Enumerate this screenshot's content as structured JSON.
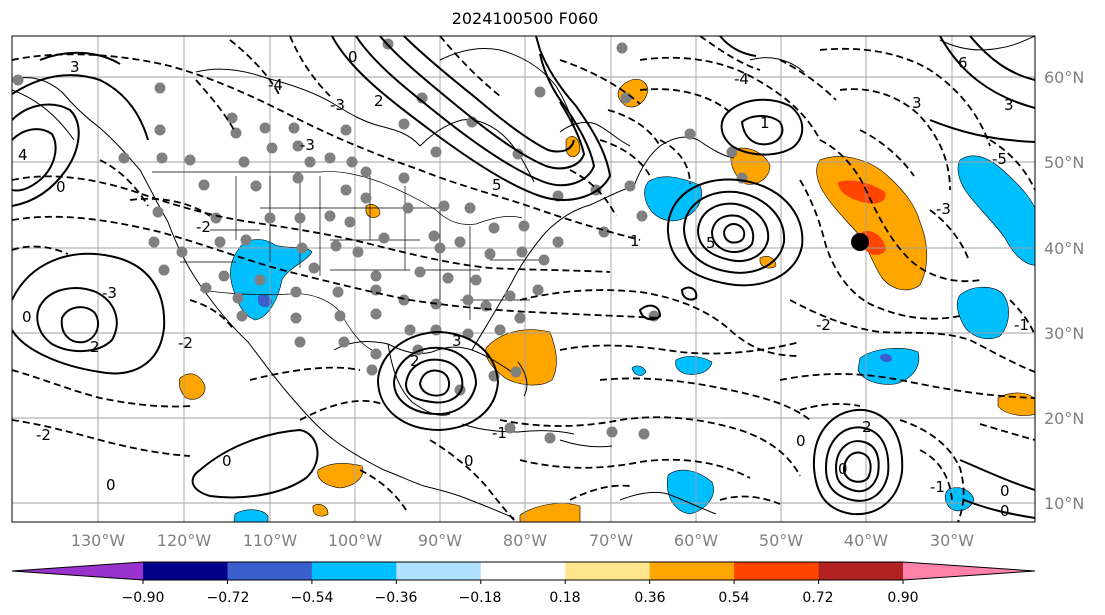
{
  "title": "2024100500 F060",
  "longitude_labels": [
    "130°W",
    "120°W",
    "110°W",
    "100°W",
    "90°W",
    "80°W",
    "70°W",
    "60°W",
    "50°W",
    "40°W",
    "30°W"
  ],
  "latitude_labels": [
    "60°N",
    "50°N",
    "40°N",
    "30°N",
    "20°N",
    "10°N"
  ],
  "colorbar": {
    "tick_labels": [
      "−0.90",
      "−0.72",
      "−0.54",
      "−0.36",
      "−0.18",
      "0.18",
      "0.36",
      "0.54",
      "0.72",
      "0.90"
    ],
    "colors": [
      "#9a32cd",
      "#00008b",
      "#3a5fcd",
      "#00bfff",
      "#b0e2ff",
      "#ffffff",
      "#ffe68c",
      "#ffa500",
      "#ff4500",
      "#b22222",
      "#ff82ab"
    ]
  },
  "shading_colors": {
    "neg_light": "#00bfff",
    "neg_mid": "#3a5fcd",
    "pos_light": "#ffa500",
    "pos_mid": "#ff4500"
  },
  "contour_labels": [
    "3",
    "2",
    "1",
    "0",
    "-1",
    "-2",
    "-3",
    "-4",
    "-5",
    "4",
    "5",
    "6"
  ],
  "map_features": [
    "coastlines",
    "country borders",
    "state borders",
    "graticule",
    "station markers"
  ]
}
